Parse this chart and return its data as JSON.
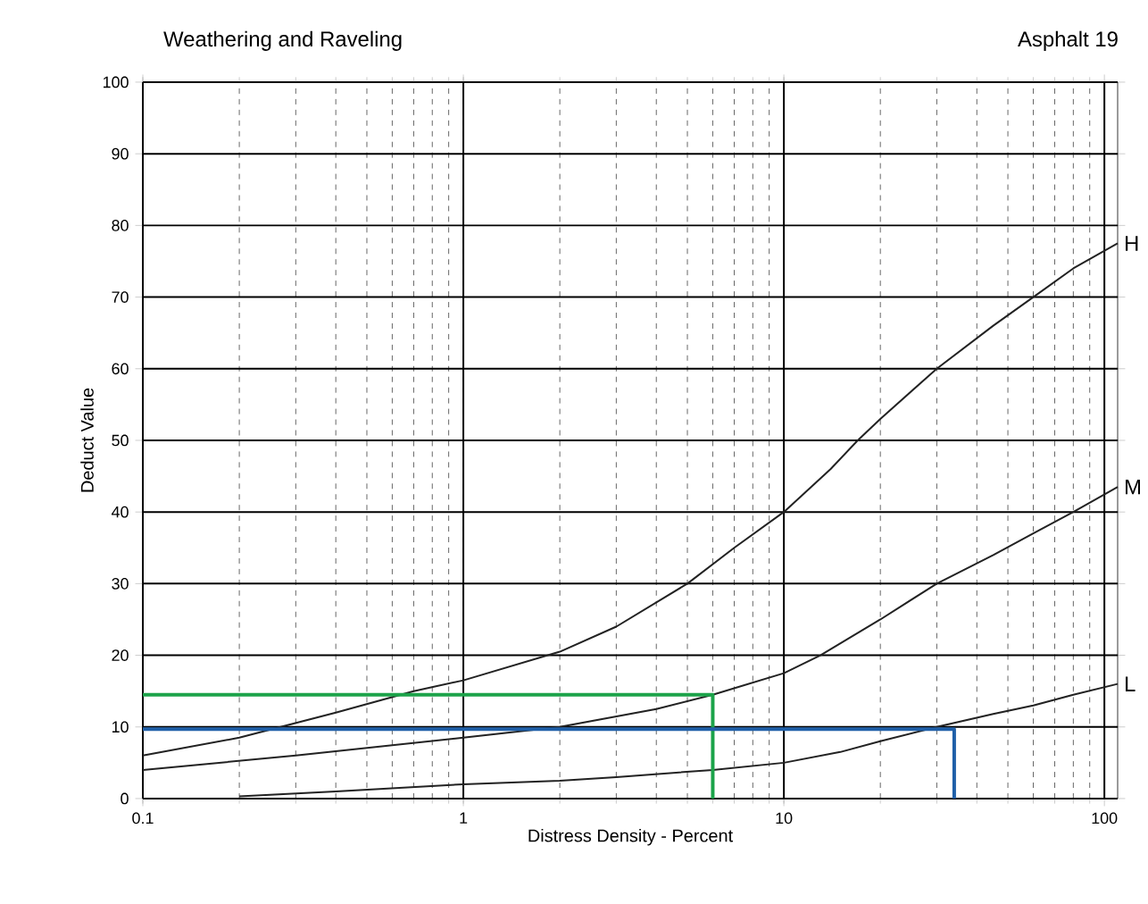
{
  "chart_data": {
    "type": "line",
    "title": "Weathering and Raveling",
    "subtitle": "Asphalt 19",
    "xlabel": "Distress Density - Percent",
    "ylabel": "Deduct Value",
    "log": "x",
    "xlim": [
      0.1,
      110
    ],
    "ylim": [
      0,
      100
    ],
    "xticks": [
      0.1,
      1,
      10,
      100
    ],
    "yticks": [
      0,
      10,
      20,
      30,
      40,
      50,
      60,
      70,
      80,
      90,
      100
    ],
    "grid": true,
    "legend": false,
    "marker": "none",
    "line_style": "solid",
    "series": [
      {
        "name": "H",
        "color": "#222222",
        "x": [
          0.1,
          0.2,
          0.4,
          0.7,
          1,
          2,
          3,
          5,
          7,
          10,
          14,
          17,
          20,
          30,
          45,
          60,
          80,
          110
        ],
        "values": [
          6,
          8.5,
          12,
          15,
          16.5,
          20.5,
          24,
          30,
          35,
          40,
          46,
          50,
          53,
          60,
          66,
          70,
          74,
          77.5
        ]
      },
      {
        "name": "M",
        "color": "#222222",
        "x": [
          0.1,
          0.3,
          1,
          2,
          4,
          6,
          10,
          13,
          20,
          30,
          45,
          60,
          80,
          110
        ],
        "values": [
          4,
          6,
          8.5,
          10,
          12.5,
          14.5,
          17.5,
          20,
          25,
          30,
          34,
          37,
          40,
          43.5
        ]
      },
      {
        "name": "L",
        "color": "#222222",
        "x": [
          0.2,
          0.4,
          1,
          2,
          3,
          6,
          10,
          15,
          20,
          30,
          45,
          60,
          80,
          110
        ],
        "values": [
          0.3,
          1,
          2,
          2.5,
          3,
          4,
          5,
          6.5,
          8,
          10,
          11.8,
          13,
          14.5,
          16
        ]
      },
      {
        "color": "#1ca34a",
        "x": [
          0.1,
          6,
          6
        ],
        "values": [
          14.5,
          14.5,
          0
        ]
      },
      {
        "color": "#1f5fa8",
        "x": [
          0.1,
          34,
          34
        ],
        "values": [
          9.7,
          9.7,
          0
        ]
      }
    ]
  }
}
